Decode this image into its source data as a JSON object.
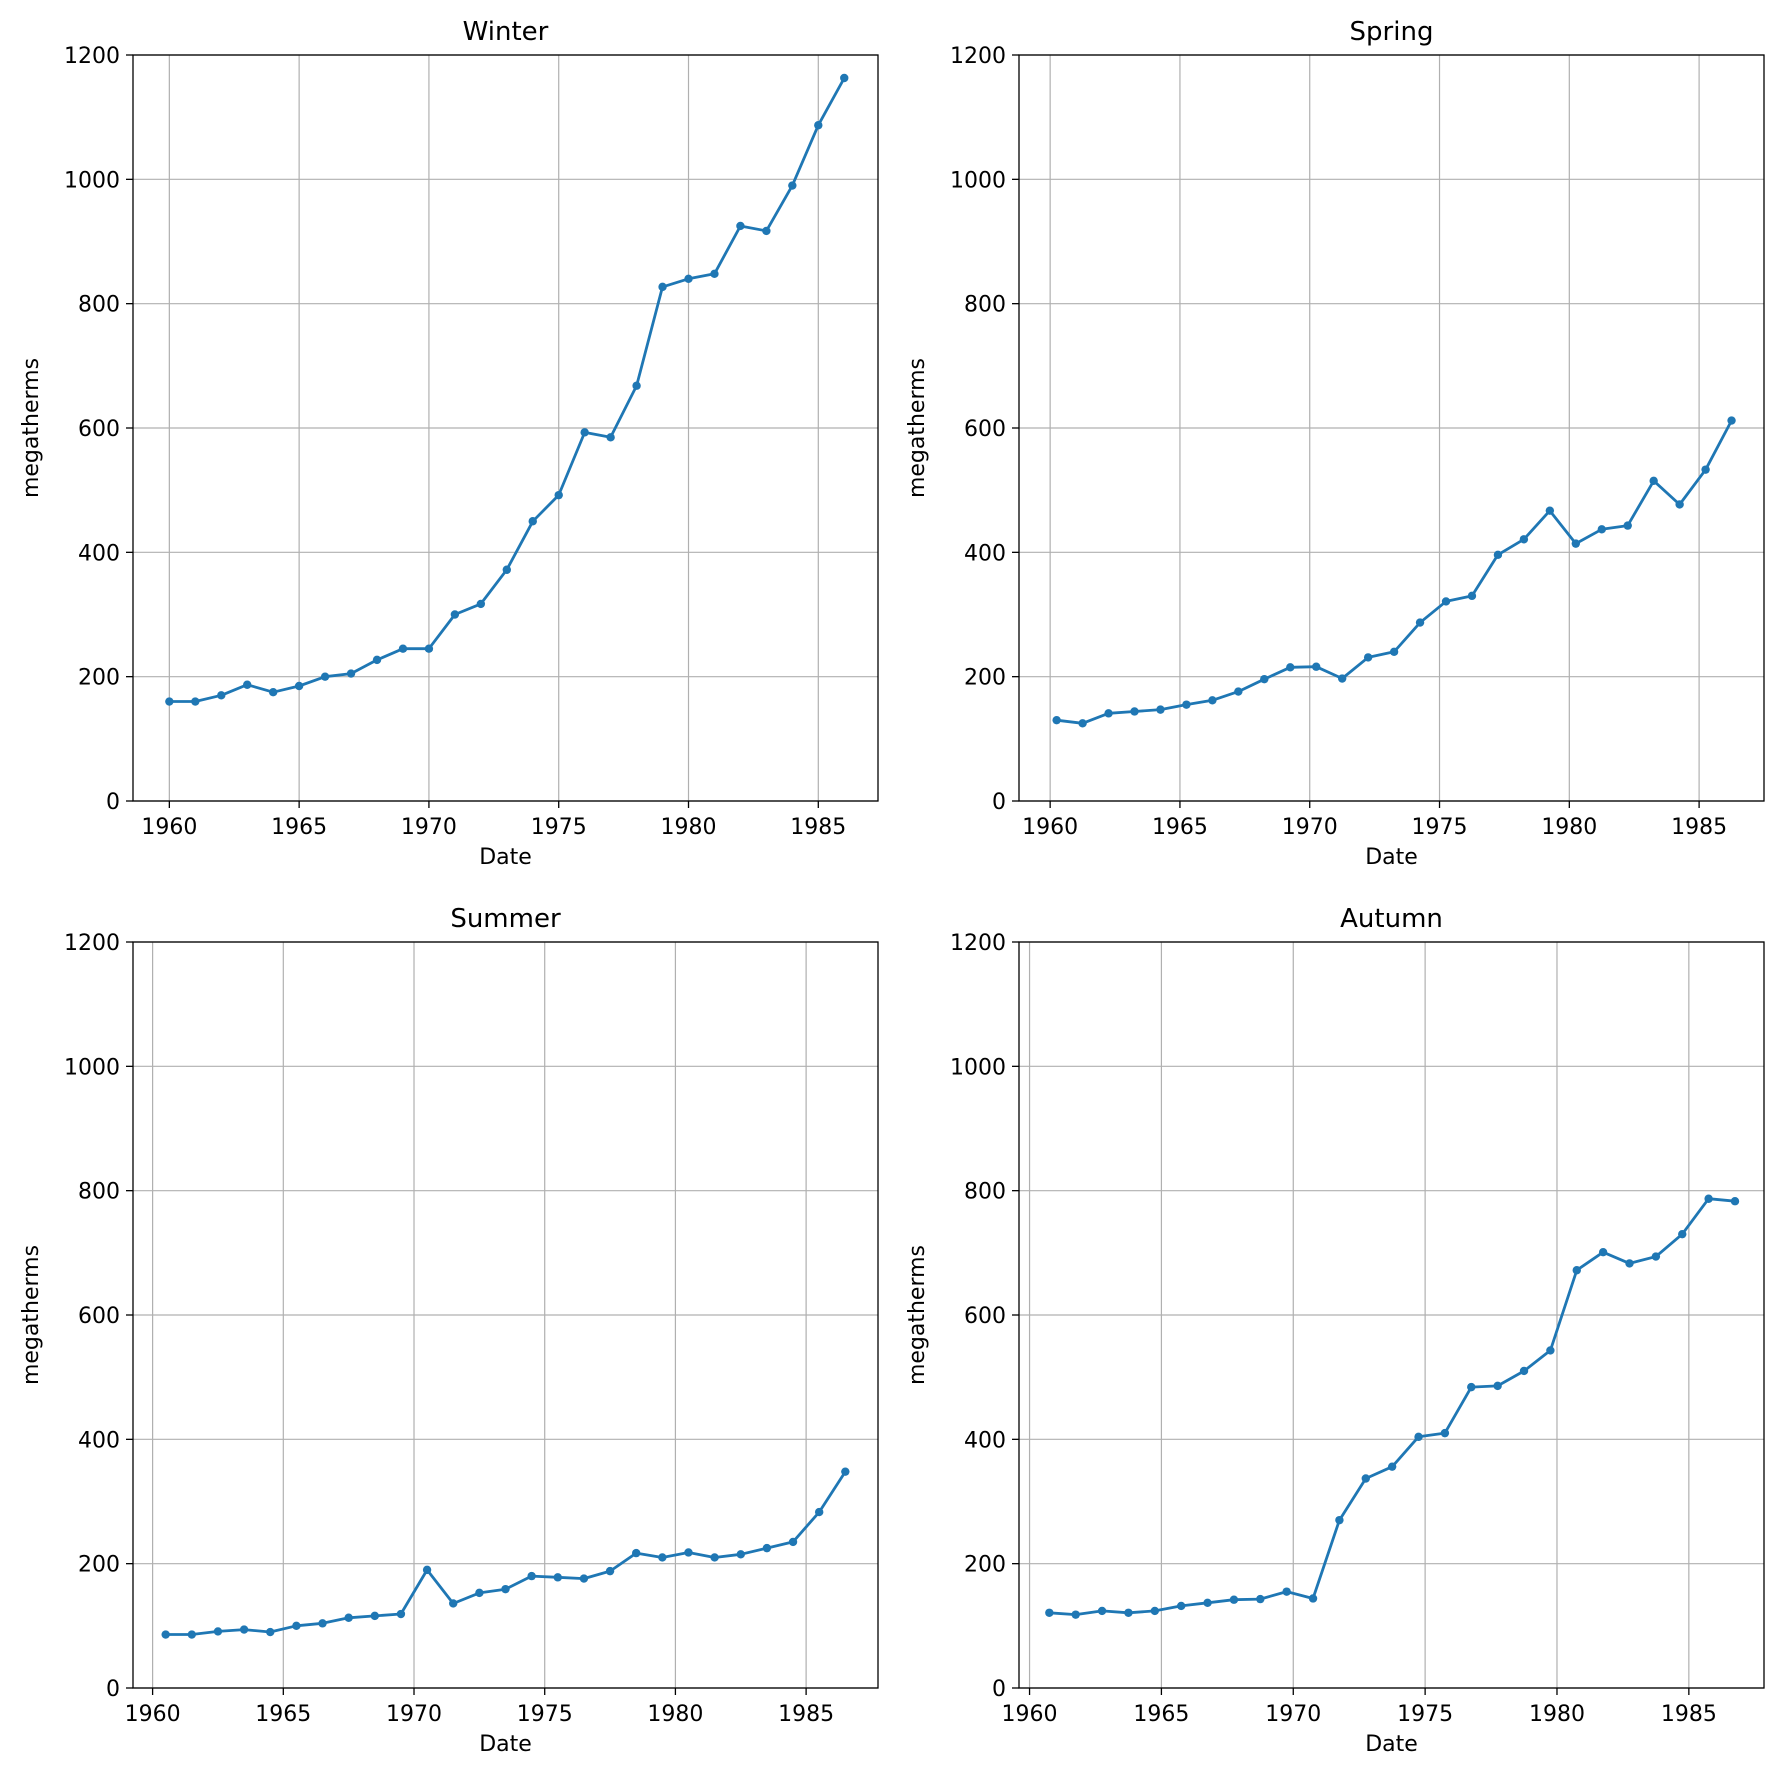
{
  "chart_data": [
    {
      "type": "line",
      "title": "Winter",
      "xlabel": "Date",
      "ylabel": "megatherms",
      "xlim": [
        1958.6,
        1987.3
      ],
      "ylim": [
        0,
        1200
      ],
      "xticks": [
        1960,
        1965,
        1970,
        1975,
        1980,
        1985
      ],
      "yticks": [
        0,
        200,
        400,
        600,
        800,
        1000,
        1200
      ],
      "grid": true,
      "x": [
        1960,
        1961,
        1962,
        1963,
        1964,
        1965,
        1966,
        1967,
        1968,
        1969,
        1970,
        1971,
        1972,
        1973,
        1974,
        1975,
        1976,
        1977,
        1978,
        1979,
        1980,
        1981,
        1982,
        1983,
        1984,
        1985,
        1986
      ],
      "series": [
        {
          "values": [
            160,
            160,
            170,
            187,
            175,
            185,
            200,
            205,
            227,
            245,
            245,
            300,
            317,
            372,
            450,
            492,
            593,
            585,
            668,
            827,
            840,
            848,
            925,
            917,
            990,
            1087,
            1163
          ]
        }
      ]
    },
    {
      "type": "line",
      "title": "Spring",
      "xlabel": "Date",
      "ylabel": "megatherms",
      "xlim": [
        1958.8,
        1987.5
      ],
      "ylim": [
        0,
        1200
      ],
      "xticks": [
        1960,
        1965,
        1970,
        1975,
        1980,
        1985
      ],
      "yticks": [
        0,
        200,
        400,
        600,
        800,
        1000,
        1200
      ],
      "grid": true,
      "x": [
        1960.25,
        1961.25,
        1962.25,
        1963.25,
        1964.25,
        1965.25,
        1966.25,
        1967.25,
        1968.25,
        1969.25,
        1970.25,
        1971.25,
        1972.25,
        1973.25,
        1974.25,
        1975.25,
        1976.25,
        1977.25,
        1978.25,
        1979.25,
        1980.25,
        1981.25,
        1982.25,
        1983.25,
        1984.25,
        1985.25,
        1986.25
      ],
      "series": [
        {
          "values": [
            130,
            125,
            141,
            144,
            147,
            155,
            162,
            176,
            196,
            215,
            216,
            197,
            231,
            240,
            287,
            321,
            330,
            396,
            421,
            467,
            414,
            437,
            443,
            515,
            477,
            533,
            612
          ]
        }
      ]
    },
    {
      "type": "line",
      "title": "Summer",
      "xlabel": "Date",
      "ylabel": "megatherms",
      "xlim": [
        1959.25,
        1987.75
      ],
      "ylim": [
        0,
        1200
      ],
      "xticks": [
        1960,
        1965,
        1970,
        1975,
        1980,
        1985
      ],
      "yticks": [
        0,
        200,
        400,
        600,
        800,
        1000,
        1200
      ],
      "grid": true,
      "x": [
        1960.5,
        1961.5,
        1962.5,
        1963.5,
        1964.5,
        1965.5,
        1966.5,
        1967.5,
        1968.5,
        1969.5,
        1970.5,
        1971.5,
        1972.5,
        1973.5,
        1974.5,
        1975.5,
        1976.5,
        1977.5,
        1978.5,
        1979.5,
        1980.5,
        1981.5,
        1982.5,
        1983.5,
        1984.5,
        1985.5,
        1986.5
      ],
      "series": [
        {
          "values": [
            86,
            86,
            91,
            94,
            90,
            100,
            104,
            113,
            116,
            119,
            190,
            136,
            153,
            159,
            180,
            178,
            176,
            188,
            217,
            210,
            218,
            210,
            215,
            225,
            235,
            283,
            348
          ]
        }
      ]
    },
    {
      "type": "line",
      "title": "Autumn",
      "xlabel": "Date",
      "ylabel": "megatherms",
      "xlim": [
        1959.6,
        1987.85
      ],
      "ylim": [
        0,
        1200
      ],
      "xticks": [
        1960,
        1965,
        1970,
        1975,
        1980,
        1985
      ],
      "yticks": [
        0,
        200,
        400,
        600,
        800,
        1000,
        1200
      ],
      "grid": true,
      "x": [
        1960.75,
        1961.75,
        1962.75,
        1963.75,
        1964.75,
        1965.75,
        1966.75,
        1967.75,
        1968.75,
        1969.75,
        1970.75,
        1971.75,
        1972.75,
        1973.75,
        1974.75,
        1975.75,
        1976.75,
        1977.75,
        1978.75,
        1979.75,
        1980.75,
        1981.75,
        1982.75,
        1983.75,
        1984.75,
        1985.75,
        1986.75
      ],
      "series": [
        {
          "values": [
            121,
            118,
            124,
            121,
            124,
            132,
            137,
            142,
            143,
            155,
            144,
            270,
            337,
            356,
            404,
            410,
            484,
            486,
            510,
            543,
            672,
            701,
            683,
            694,
            730,
            787,
            783
          ]
        }
      ]
    }
  ]
}
